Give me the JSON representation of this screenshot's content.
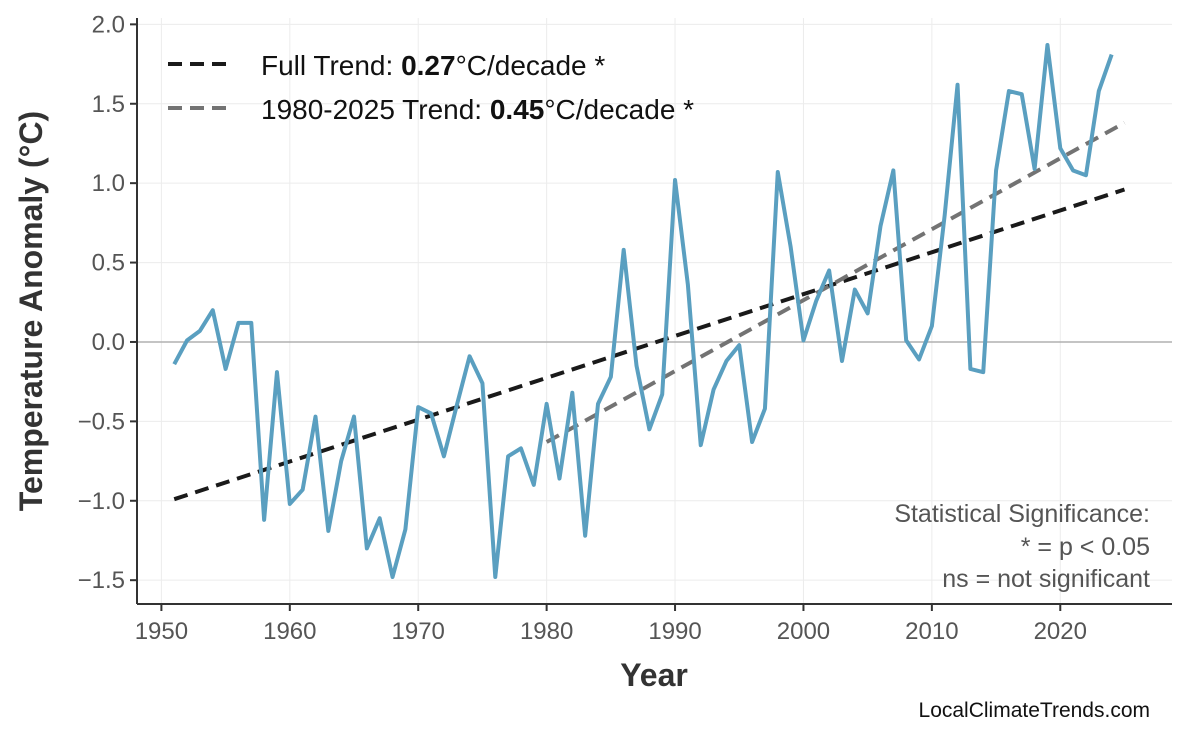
{
  "chart_data": {
    "type": "line",
    "xlabel": "Year",
    "ylabel": "Temperature Anomaly (°C)",
    "xlim": [
      1948.1,
      2028.7
    ],
    "ylim": [
      -1.65,
      2.04
    ],
    "xticks": [
      1950,
      1960,
      1970,
      1980,
      1990,
      2000,
      2010,
      2020
    ],
    "yticks": [
      -1.5,
      -1.0,
      -0.5,
      0.0,
      0.5,
      1.0,
      1.5,
      2.0
    ],
    "ytick_labels": [
      "−1.5",
      "−1.0",
      "−0.5",
      "0.0",
      "0.5",
      "1.0",
      "1.5",
      "2.0"
    ],
    "grid": true,
    "legend_placement": "top-left",
    "colors": {
      "series": "#5a9fc0",
      "full_trend": "#1a1a1a",
      "recent_trend": "#737373",
      "zero_line": "#b0b0b0",
      "grid": "#ececec"
    },
    "series": {
      "x": [
        1951,
        1952,
        1953,
        1954,
        1955,
        1956,
        1957,
        1958,
        1959,
        1960,
        1961,
        1962,
        1963,
        1964,
        1965,
        1966,
        1967,
        1968,
        1969,
        1970,
        1971,
        1972,
        1973,
        1974,
        1975,
        1976,
        1977,
        1978,
        1979,
        1980,
        1981,
        1982,
        1983,
        1984,
        1985,
        1986,
        1987,
        1988,
        1989,
        1990,
        1991,
        1992,
        1993,
        1994,
        1995,
        1996,
        1997,
        1998,
        1999,
        2000,
        2001,
        2002,
        2003,
        2004,
        2005,
        2006,
        2007,
        2008,
        2009,
        2010,
        2011,
        2012,
        2013,
        2014,
        2015,
        2016,
        2017,
        2018,
        2019,
        2020,
        2021,
        2022,
        2023,
        2024
      ],
      "y": [
        -0.14,
        0.01,
        0.07,
        0.2,
        -0.17,
        0.12,
        0.12,
        -1.12,
        -0.19,
        -1.02,
        -0.93,
        -0.47,
        -1.19,
        -0.75,
        -0.47,
        -1.3,
        -1.11,
        -1.48,
        -1.18,
        -0.41,
        -0.45,
        -0.72,
        -0.4,
        -0.09,
        -0.26,
        -1.48,
        -0.72,
        -0.67,
        -0.9,
        -0.39,
        -0.86,
        -0.32,
        -1.22,
        -0.39,
        -0.22,
        0.58,
        -0.15,
        -0.55,
        -0.33,
        1.02,
        0.36,
        -0.65,
        -0.3,
        -0.12,
        -0.02,
        -0.63,
        -0.42,
        1.07,
        0.6,
        0.01,
        0.26,
        0.45,
        -0.12,
        0.33,
        0.18,
        0.73,
        1.08,
        0.01,
        -0.11,
        0.1,
        0.8,
        1.62,
        -0.17,
        -0.19,
        1.08,
        1.58,
        1.56,
        1.09,
        1.87,
        1.22,
        1.08,
        1.05,
        1.58,
        1.81
      ]
    },
    "trends": [
      {
        "label_prefix": "Full Trend: ",
        "value": "0.27",
        "label_suffix": "°C/decade *",
        "x": [
          1951,
          2025
        ],
        "y": [
          -0.99,
          0.96
        ]
      },
      {
        "label_prefix": "1980-2025 Trend: ",
        "value": "0.45",
        "label_suffix": "°C/decade *",
        "x": [
          1980,
          2025
        ],
        "y": [
          -0.63,
          1.38
        ]
      }
    ],
    "annotation": [
      "Statistical Significance:",
      "* = p < 0.05",
      "ns = not significant"
    ],
    "credit": "LocalClimateTrends.com"
  }
}
